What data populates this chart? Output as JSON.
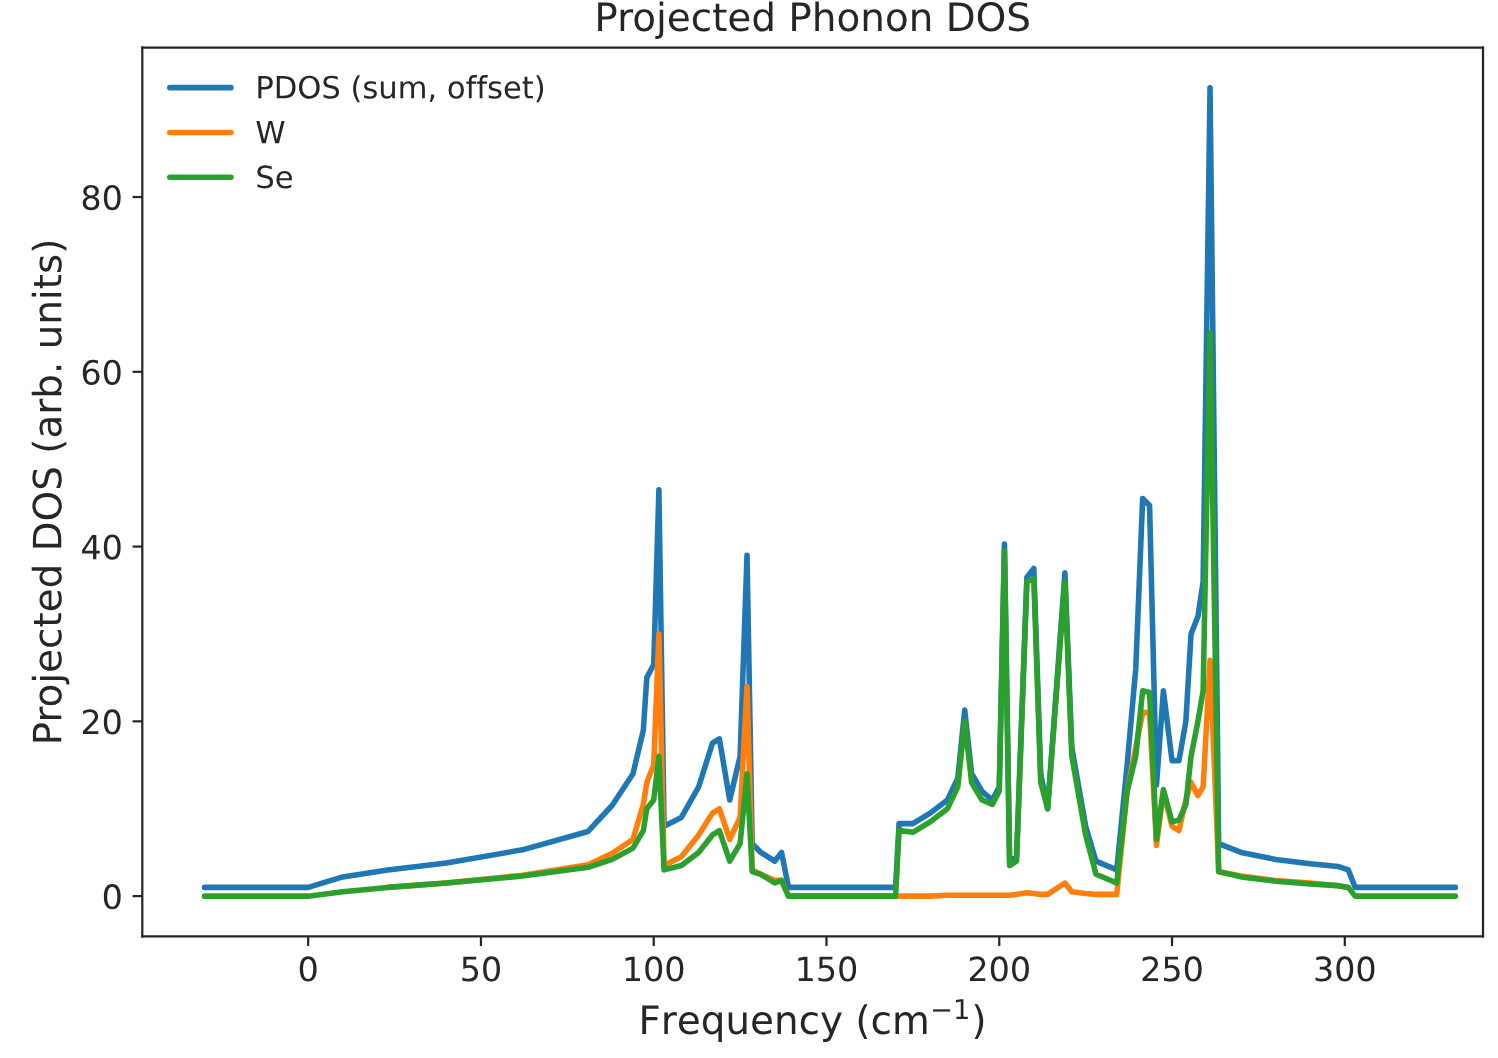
{
  "chart_data": {
    "type": "line",
    "title": "Projected Phonon DOS",
    "xlabel": "Frequency (cm$^{−1}$)",
    "ylabel": "Projected DOS (arb. units)",
    "x": [
      -30,
      0,
      10,
      23,
      40,
      62,
      81,
      88,
      94,
      97,
      98,
      100,
      101.5,
      103,
      108,
      113,
      117,
      119,
      122,
      125,
      127,
      128.5,
      131,
      135,
      137,
      139,
      170,
      171,
      175,
      180,
      185,
      188,
      190,
      192,
      195,
      198,
      200,
      201.5,
      203,
      205,
      208,
      210,
      212,
      214,
      219,
      221,
      225,
      228,
      234,
      237,
      239.5,
      241.5,
      243.5,
      245.5,
      247.5,
      250,
      252,
      254,
      255.5,
      257.5,
      259,
      261,
      263.5,
      270,
      280,
      290,
      298,
      301,
      303,
      332
    ],
    "series": [
      {
        "name": "PDOS (sum, offset)",
        "color": "#1f77b4",
        "values": [
          1,
          1,
          2.2,
          3.0,
          3.8,
          5.3,
          7.4,
          10.4,
          14,
          19,
          25,
          26.5,
          46.5,
          8,
          9,
          12.5,
          17.5,
          18,
          11,
          16,
          39,
          6,
          5,
          4,
          5,
          1,
          1,
          8.3,
          8.3,
          9.5,
          11,
          13.5,
          21.3,
          14,
          12,
          11,
          12.5,
          40.3,
          4,
          4.5,
          36.5,
          37.5,
          14,
          10,
          37,
          17,
          8,
          4,
          3,
          15,
          26,
          45.5,
          44.7,
          12.7,
          23.5,
          15.5,
          15.5,
          20,
          30,
          32,
          36,
          92.5,
          6,
          5,
          4.2,
          3.7,
          3.4,
          3,
          1,
          1
        ]
      },
      {
        "name": "W",
        "color": "#ff7f0e",
        "values": [
          null,
          null,
          null,
          1.0,
          1.5,
          2.4,
          3.6,
          4.9,
          6.5,
          10.5,
          13,
          15,
          30,
          3.5,
          4.5,
          7,
          9.5,
          10,
          6.5,
          9,
          24,
          3,
          2.5,
          1.8,
          1.8,
          0,
          0,
          0,
          0,
          0,
          0.1,
          0.1,
          0.1,
          0.1,
          0.1,
          0.1,
          0.1,
          0.1,
          0.1,
          0.2,
          0.4,
          0.3,
          0.2,
          0.2,
          1.5,
          0.5,
          0.3,
          0.2,
          0.2,
          12,
          17,
          21,
          21,
          5.8,
          12,
          8,
          7.5,
          11,
          13,
          11.5,
          12.5,
          27,
          2.8,
          2.3,
          1.8,
          1.5,
          1.2,
          1,
          null,
          null
        ]
      },
      {
        "name": "Se",
        "color": "#2ca02c",
        "values": [
          0,
          0,
          0.5,
          1.0,
          1.5,
          2.3,
          3.3,
          4.2,
          5.5,
          7.5,
          10,
          11,
          16,
          3,
          3.5,
          5,
          7,
          7.5,
          4,
          6,
          14,
          2.8,
          2.5,
          1.5,
          1.8,
          0,
          0,
          7.5,
          7.3,
          8.5,
          10,
          12.5,
          20,
          13,
          11,
          10.5,
          12,
          39.5,
          3.5,
          4,
          36,
          36.3,
          13,
          10,
          36,
          16,
          7,
          2.5,
          1.5,
          12,
          16,
          23.5,
          23.3,
          6.5,
          12.2,
          8.5,
          8.7,
          10.5,
          16,
          20,
          23.5,
          64.5,
          2.8,
          2.2,
          1.7,
          1.4,
          1.2,
          1,
          0,
          0
        ]
      }
    ],
    "xlim": [
      -48,
      340
    ],
    "ylim": [
      -4.6,
      97.1
    ],
    "xticks": [
      0,
      50,
      100,
      150,
      200,
      250,
      300
    ],
    "yticks": [
      0,
      20,
      40,
      60,
      80
    ],
    "grid": false,
    "legend": "top left"
  }
}
